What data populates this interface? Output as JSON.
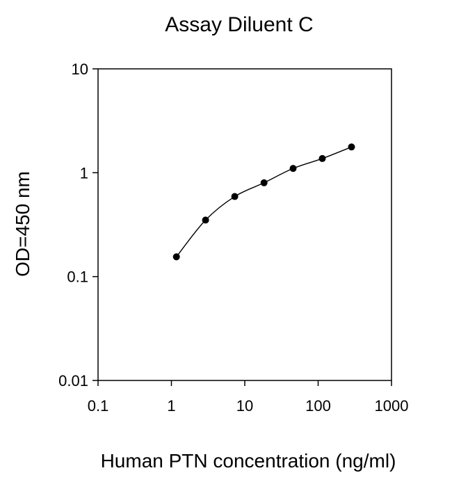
{
  "chart_data": {
    "type": "line",
    "title": "Assay Diluent C",
    "xlabel": "Human PTN concentration (ng/ml)",
    "ylabel": "OD=450 nm",
    "xscale": "log",
    "yscale": "log",
    "xlim": [
      0.1,
      1000
    ],
    "ylim": [
      0.01,
      10
    ],
    "x_ticks": [
      0.1,
      1,
      10,
      100,
      1000
    ],
    "x_tick_labels": [
      "0.1",
      "1",
      "10",
      "100",
      "1000"
    ],
    "y_ticks": [
      0.01,
      0.1,
      1,
      10
    ],
    "y_tick_labels": [
      "0.01",
      "0.1",
      "1",
      "10"
    ],
    "grid": false,
    "legend": false,
    "series": [
      {
        "x": [
          1.17,
          2.92,
          7.3,
          18.3,
          45.6,
          114,
          285
        ],
        "y": [
          0.155,
          0.35,
          0.59,
          0.8,
          1.1,
          1.37,
          1.77
        ],
        "marker": "circle",
        "color": "#000000"
      }
    ]
  }
}
